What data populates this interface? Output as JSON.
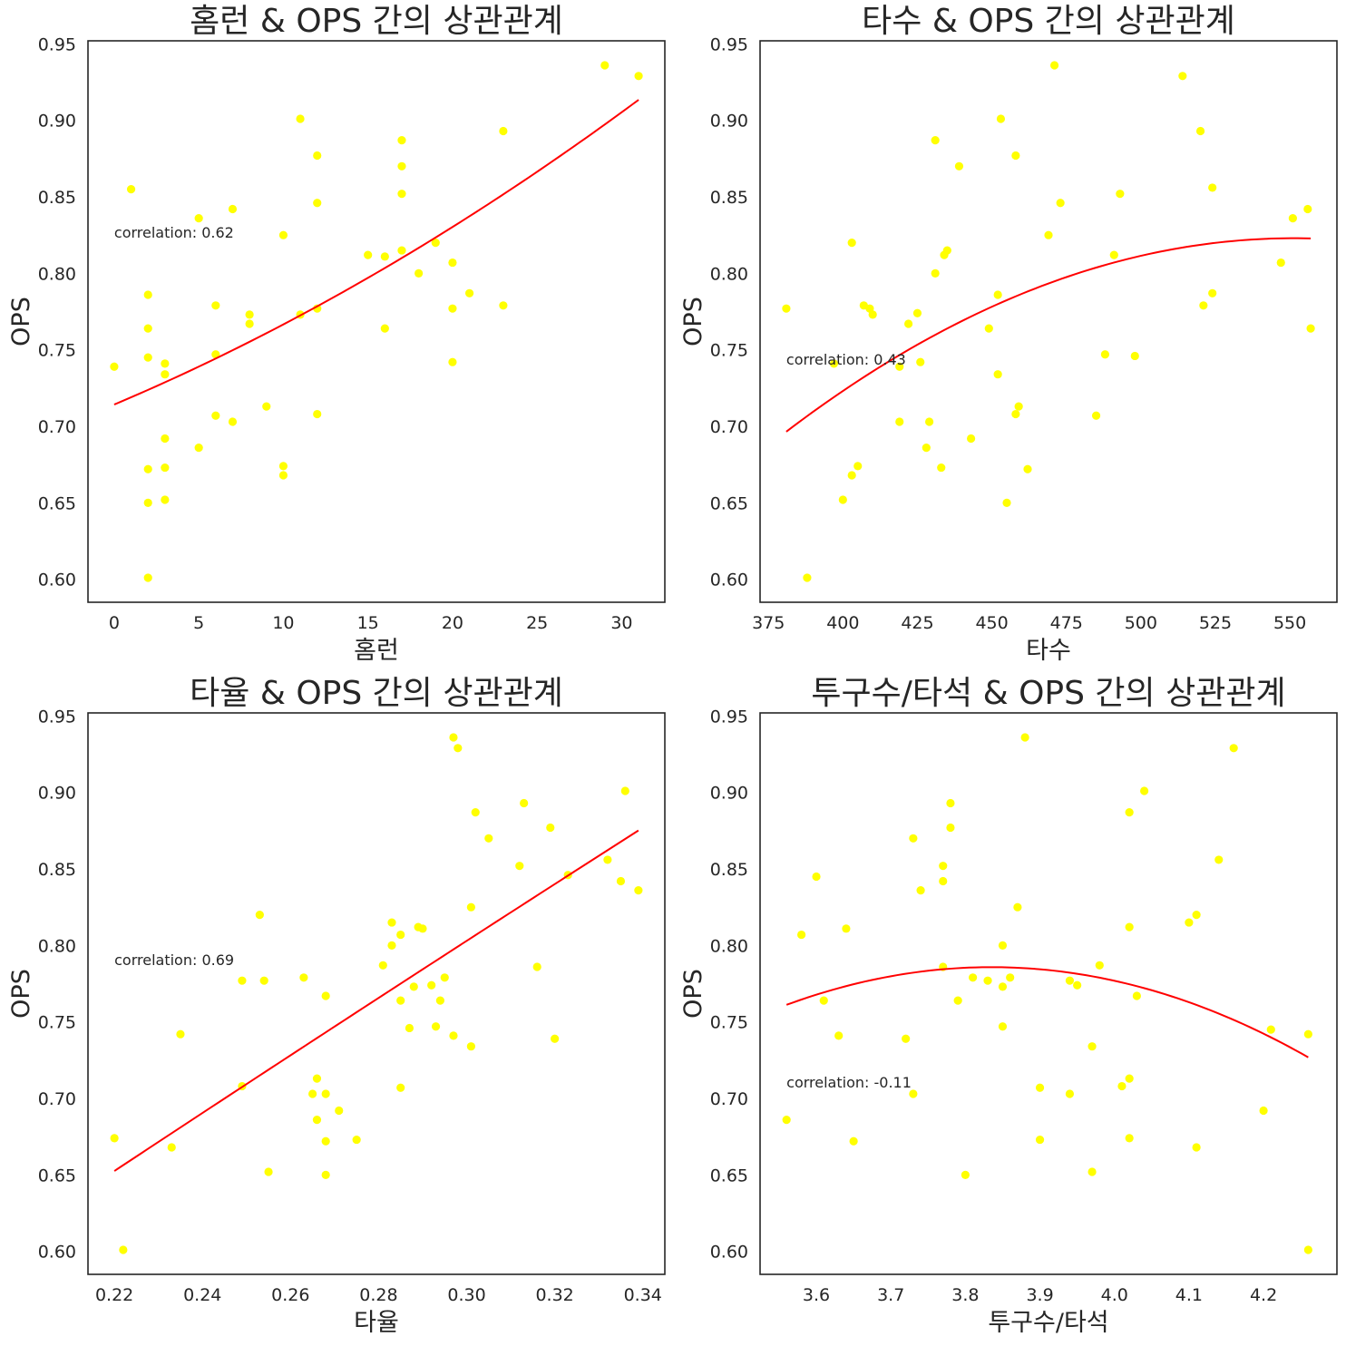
{
  "figure": {
    "background": "#ffffff",
    "point_color": "#ffff00",
    "fit_color": "#ff0000",
    "frame_color": "#262626"
  },
  "chart_data": [
    {
      "type": "scatter",
      "title": "홈런 & OPS 간의 상관관계",
      "xlabel": "홈런",
      "ylabel": "OPS",
      "xlim": [
        -1.55,
        32.55
      ],
      "ylim": [
        0.585,
        0.952
      ],
      "xticks": [
        0,
        5,
        10,
        15,
        20,
        25,
        30
      ],
      "xtick_labels": [
        "0",
        "5",
        "10",
        "15",
        "20",
        "25",
        "30"
      ],
      "yticks": [
        0.6,
        0.65,
        0.7,
        0.75,
        0.8,
        0.85,
        0.9,
        0.95
      ],
      "ytick_labels": [
        "0.60",
        "0.65",
        "0.70",
        "0.75",
        "0.80",
        "0.85",
        "0.90",
        "0.95"
      ],
      "grid": false,
      "annotation": "correlation: 0.62",
      "points": [
        [
          0,
          0.739
        ],
        [
          1,
          0.855
        ],
        [
          2,
          0.786
        ],
        [
          2,
          0.764
        ],
        [
          2,
          0.745
        ],
        [
          2,
          0.672
        ],
        [
          2,
          0.65
        ],
        [
          2,
          0.601
        ],
        [
          3,
          0.741
        ],
        [
          3,
          0.734
        ],
        [
          3,
          0.692
        ],
        [
          3,
          0.673
        ],
        [
          3,
          0.652
        ],
        [
          5,
          0.836
        ],
        [
          5,
          0.686
        ],
        [
          6,
          0.779
        ],
        [
          6,
          0.747
        ],
        [
          6,
          0.707
        ],
        [
          7,
          0.842
        ],
        [
          7,
          0.703
        ],
        [
          8,
          0.773
        ],
        [
          8,
          0.767
        ],
        [
          9,
          0.713
        ],
        [
          10,
          0.825
        ],
        [
          10,
          0.674
        ],
        [
          10,
          0.668
        ],
        [
          11,
          0.901
        ],
        [
          11,
          0.773
        ],
        [
          12,
          0.877
        ],
        [
          12,
          0.846
        ],
        [
          12,
          0.777
        ],
        [
          12,
          0.708
        ],
        [
          15,
          0.812
        ],
        [
          16,
          0.811
        ],
        [
          16,
          0.764
        ],
        [
          17,
          0.887
        ],
        [
          17,
          0.87
        ],
        [
          17,
          0.852
        ],
        [
          17,
          0.815
        ],
        [
          18,
          0.8
        ],
        [
          19,
          0.82
        ],
        [
          20,
          0.807
        ],
        [
          20,
          0.777
        ],
        [
          20,
          0.742
        ],
        [
          21,
          0.787
        ],
        [
          23,
          0.893
        ],
        [
          23,
          0.779
        ],
        [
          29,
          0.936
        ],
        [
          31,
          0.929
        ]
      ],
      "fit": {
        "degree": 2,
        "x_range": [
          0,
          31
        ],
        "y_at_start": 0.714,
        "y_at_end": 0.915,
        "y_at_mid": 0.806
      }
    },
    {
      "type": "scatter",
      "title": "타수 & OPS 간의 상관관계",
      "xlabel": "타수",
      "ylabel": "OPS",
      "xlim": [
        372.2,
        565.8
      ],
      "ylim": [
        0.585,
        0.952
      ],
      "xticks": [
        375,
        400,
        425,
        450,
        475,
        500,
        525,
        550
      ],
      "xtick_labels": [
        "375",
        "400",
        "425",
        "450",
        "475",
        "500",
        "525",
        "550"
      ],
      "yticks": [
        0.6,
        0.65,
        0.7,
        0.75,
        0.8,
        0.85,
        0.9,
        0.95
      ],
      "ytick_labels": [
        "0.60",
        "0.65",
        "0.70",
        "0.75",
        "0.80",
        "0.85",
        "0.90",
        "0.95"
      ],
      "grid": false,
      "annotation": "correlation: 0.43",
      "points": [
        [
          381,
          0.777
        ],
        [
          388,
          0.601
        ],
        [
          397,
          0.741
        ],
        [
          400,
          0.652
        ],
        [
          403,
          0.668
        ],
        [
          403,
          0.82
        ],
        [
          405,
          0.674
        ],
        [
          407,
          0.779
        ],
        [
          409,
          0.777
        ],
        [
          410,
          0.773
        ],
        [
          419,
          0.703
        ],
        [
          419,
          0.739
        ],
        [
          422,
          0.767
        ],
        [
          425,
          0.774
        ],
        [
          426,
          0.742
        ],
        [
          428,
          0.686
        ],
        [
          429,
          0.703
        ],
        [
          431,
          0.887
        ],
        [
          431,
          0.8
        ],
        [
          433,
          0.673
        ],
        [
          434,
          0.812
        ],
        [
          435,
          0.815
        ],
        [
          439,
          0.87
        ],
        [
          443,
          0.692
        ],
        [
          449,
          0.764
        ],
        [
          452,
          0.786
        ],
        [
          452,
          0.734
        ],
        [
          453,
          0.901
        ],
        [
          455,
          0.65
        ],
        [
          458,
          0.708
        ],
        [
          458,
          0.877
        ],
        [
          459,
          0.713
        ],
        [
          462,
          0.672
        ],
        [
          469,
          0.825
        ],
        [
          471,
          0.936
        ],
        [
          473,
          0.846
        ],
        [
          485,
          0.707
        ],
        [
          488,
          0.747
        ],
        [
          491,
          0.812
        ],
        [
          493,
          0.852
        ],
        [
          498,
          0.746
        ],
        [
          514,
          0.929
        ],
        [
          520,
          0.893
        ],
        [
          521,
          0.779
        ],
        [
          524,
          0.787
        ],
        [
          524,
          0.856
        ],
        [
          547,
          0.807
        ],
        [
          551,
          0.836
        ],
        [
          556,
          0.842
        ],
        [
          557,
          0.764
        ]
      ],
      "fit": {
        "degree": 2,
        "x_range": [
          381,
          557
        ],
        "y_at_start": 0.697,
        "y_at_end": 0.822,
        "y_at_mid": 0.797
      }
    },
    {
      "type": "scatter",
      "title": "타율 & OPS 간의 상관관계",
      "xlabel": "타율",
      "ylabel": "OPS",
      "xlim": [
        0.214,
        0.345
      ],
      "ylim": [
        0.585,
        0.952
      ],
      "xticks": [
        0.22,
        0.24,
        0.26,
        0.28,
        0.3,
        0.32,
        0.34
      ],
      "xtick_labels": [
        "0.22",
        "0.24",
        "0.26",
        "0.28",
        "0.30",
        "0.32",
        "0.34"
      ],
      "yticks": [
        0.6,
        0.65,
        0.7,
        0.75,
        0.8,
        0.85,
        0.9,
        0.95
      ],
      "ytick_labels": [
        "0.60",
        "0.65",
        "0.70",
        "0.75",
        "0.80",
        "0.85",
        "0.90",
        "0.95"
      ],
      "grid": false,
      "annotation": "correlation: 0.69",
      "points": [
        [
          0.22,
          0.674
        ],
        [
          0.222,
          0.601
        ],
        [
          0.233,
          0.668
        ],
        [
          0.235,
          0.742
        ],
        [
          0.249,
          0.708
        ],
        [
          0.249,
          0.777
        ],
        [
          0.253,
          0.82
        ],
        [
          0.254,
          0.777
        ],
        [
          0.255,
          0.652
        ],
        [
          0.263,
          0.779
        ],
        [
          0.265,
          0.703
        ],
        [
          0.266,
          0.713
        ],
        [
          0.266,
          0.686
        ],
        [
          0.268,
          0.767
        ],
        [
          0.268,
          0.703
        ],
        [
          0.268,
          0.672
        ],
        [
          0.268,
          0.65
        ],
        [
          0.271,
          0.692
        ],
        [
          0.275,
          0.673
        ],
        [
          0.281,
          0.787
        ],
        [
          0.283,
          0.815
        ],
        [
          0.283,
          0.8
        ],
        [
          0.285,
          0.807
        ],
        [
          0.285,
          0.764
        ],
        [
          0.285,
          0.707
        ],
        [
          0.287,
          0.746
        ],
        [
          0.288,
          0.773
        ],
        [
          0.289,
          0.812
        ],
        [
          0.29,
          0.811
        ],
        [
          0.292,
          0.774
        ],
        [
          0.293,
          0.747
        ],
        [
          0.294,
          0.764
        ],
        [
          0.295,
          0.779
        ],
        [
          0.297,
          0.741
        ],
        [
          0.297,
          0.936
        ],
        [
          0.298,
          0.929
        ],
        [
          0.301,
          0.825
        ],
        [
          0.301,
          0.734
        ],
        [
          0.302,
          0.887
        ],
        [
          0.305,
          0.87
        ],
        [
          0.312,
          0.852
        ],
        [
          0.313,
          0.893
        ],
        [
          0.316,
          0.786
        ],
        [
          0.319,
          0.877
        ],
        [
          0.32,
          0.739
        ],
        [
          0.323,
          0.846
        ],
        [
          0.332,
          0.856
        ],
        [
          0.335,
          0.842
        ],
        [
          0.336,
          0.901
        ],
        [
          0.339,
          0.836
        ]
      ],
      "fit": {
        "degree": 2,
        "x_range": [
          0.22,
          0.339
        ],
        "y_at_start": 0.652,
        "y_at_end": 0.875,
        "y_at_mid": 0.763
      }
    },
    {
      "type": "scatter",
      "title": "투구수/타석 & OPS 간의 상관관계",
      "xlabel": "투구수/타석",
      "ylabel": "OPS",
      "xlim": [
        3.5245,
        4.2985
      ],
      "ylim": [
        0.585,
        0.952
      ],
      "xticks": [
        3.6,
        3.7,
        3.8,
        3.9,
        4.0,
        4.1,
        4.2
      ],
      "xtick_labels": [
        "3.6",
        "3.7",
        "3.8",
        "3.9",
        "4.0",
        "4.1",
        "4.2"
      ],
      "yticks": [
        0.6,
        0.65,
        0.7,
        0.75,
        0.8,
        0.85,
        0.9,
        0.95
      ],
      "ytick_labels": [
        "0.60",
        "0.65",
        "0.70",
        "0.75",
        "0.80",
        "0.85",
        "0.90",
        "0.95"
      ],
      "grid": false,
      "annotation": "correlation: -0.11",
      "points": [
        [
          3.56,
          0.686
        ],
        [
          3.58,
          0.807
        ],
        [
          3.6,
          0.845
        ],
        [
          3.61,
          0.764
        ],
        [
          3.63,
          0.741
        ],
        [
          3.64,
          0.811
        ],
        [
          3.65,
          0.672
        ],
        [
          3.72,
          0.739
        ],
        [
          3.73,
          0.87
        ],
        [
          3.73,
          0.703
        ],
        [
          3.74,
          0.836
        ],
        [
          3.77,
          0.852
        ],
        [
          3.77,
          0.842
        ],
        [
          3.77,
          0.786
        ],
        [
          3.78,
          0.893
        ],
        [
          3.78,
          0.877
        ],
        [
          3.79,
          0.764
        ],
        [
          3.8,
          0.65
        ],
        [
          3.81,
          0.779
        ],
        [
          3.83,
          0.777
        ],
        [
          3.85,
          0.8
        ],
        [
          3.85,
          0.773
        ],
        [
          3.85,
          0.747
        ],
        [
          3.86,
          0.779
        ],
        [
          3.87,
          0.825
        ],
        [
          3.88,
          0.936
        ],
        [
          3.9,
          0.707
        ],
        [
          3.9,
          0.673
        ],
        [
          3.94,
          0.777
        ],
        [
          3.94,
          0.703
        ],
        [
          3.95,
          0.774
        ],
        [
          3.97,
          0.734
        ],
        [
          3.97,
          0.652
        ],
        [
          3.98,
          0.787
        ],
        [
          4.01,
          0.708
        ],
        [
          4.02,
          0.887
        ],
        [
          4.02,
          0.812
        ],
        [
          4.02,
          0.713
        ],
        [
          4.02,
          0.674
        ],
        [
          4.03,
          0.767
        ],
        [
          4.04,
          0.901
        ],
        [
          4.1,
          0.815
        ],
        [
          4.11,
          0.82
        ],
        [
          4.11,
          0.668
        ],
        [
          4.14,
          0.856
        ],
        [
          4.16,
          0.929
        ],
        [
          4.2,
          0.692
        ],
        [
          4.21,
          0.745
        ],
        [
          4.26,
          0.742
        ],
        [
          4.26,
          0.601
        ]
      ],
      "fit": {
        "degree": 2,
        "x_range": [
          3.56,
          4.26
        ],
        "y_at_start": 0.762,
        "y_at_end": 0.727,
        "y_at_mid": 0.781
      }
    }
  ]
}
